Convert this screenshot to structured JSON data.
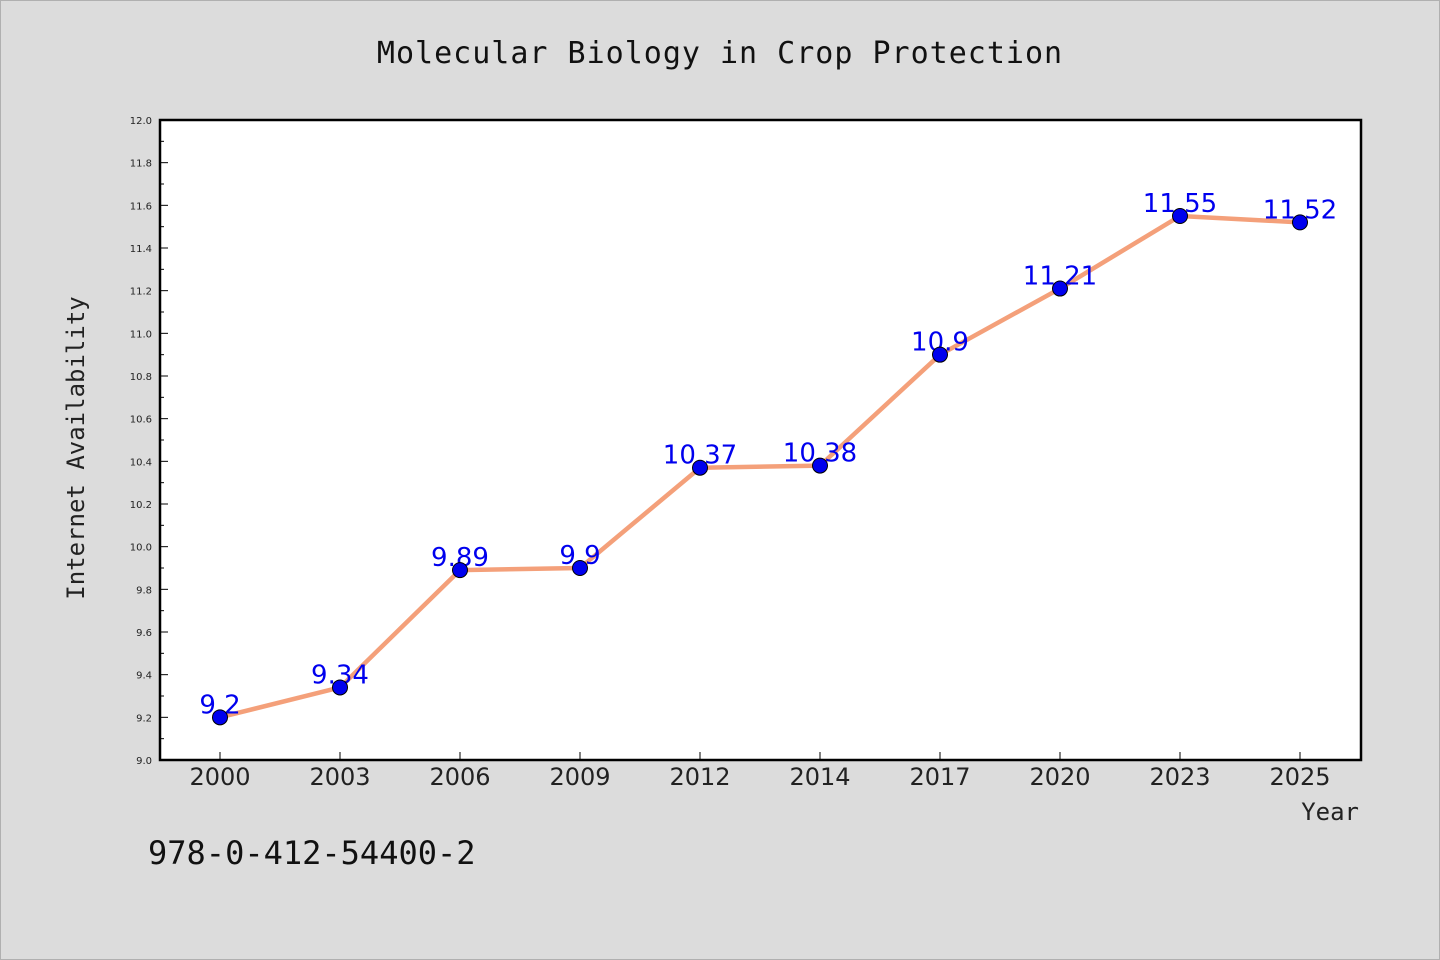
{
  "chart_data": {
    "type": "line",
    "title": "Molecular Biology in Crop Protection",
    "xlabel": "Year",
    "ylabel": "Internet Availability",
    "categories": [
      "2000",
      "2003",
      "2006",
      "2009",
      "2012",
      "2014",
      "2017",
      "2020",
      "2023",
      "2025"
    ],
    "values": [
      9.2,
      9.34,
      9.89,
      9.9,
      10.37,
      10.38,
      10.9,
      11.21,
      11.55,
      11.52
    ],
    "data_labels": [
      "9.2",
      "9.34",
      "9.89",
      "9.9",
      "10.37",
      "10.38",
      "10.9",
      "11.21",
      "11.55",
      "11.52"
    ],
    "ylim": [
      9.0,
      12.0
    ],
    "yticks": [
      "9.0",
      "9.2",
      "9.4",
      "9.6",
      "9.8",
      "10.0",
      "10.2",
      "10.4",
      "10.6",
      "10.8",
      "11.0",
      "11.2",
      "11.4",
      "11.6",
      "11.8",
      "12.0"
    ],
    "grid": false,
    "legend": "none",
    "line_color": "#f4a07a",
    "marker_color": "#0000ee",
    "label_color": "#0000ee"
  },
  "annotation": "978-0-412-54400-2"
}
